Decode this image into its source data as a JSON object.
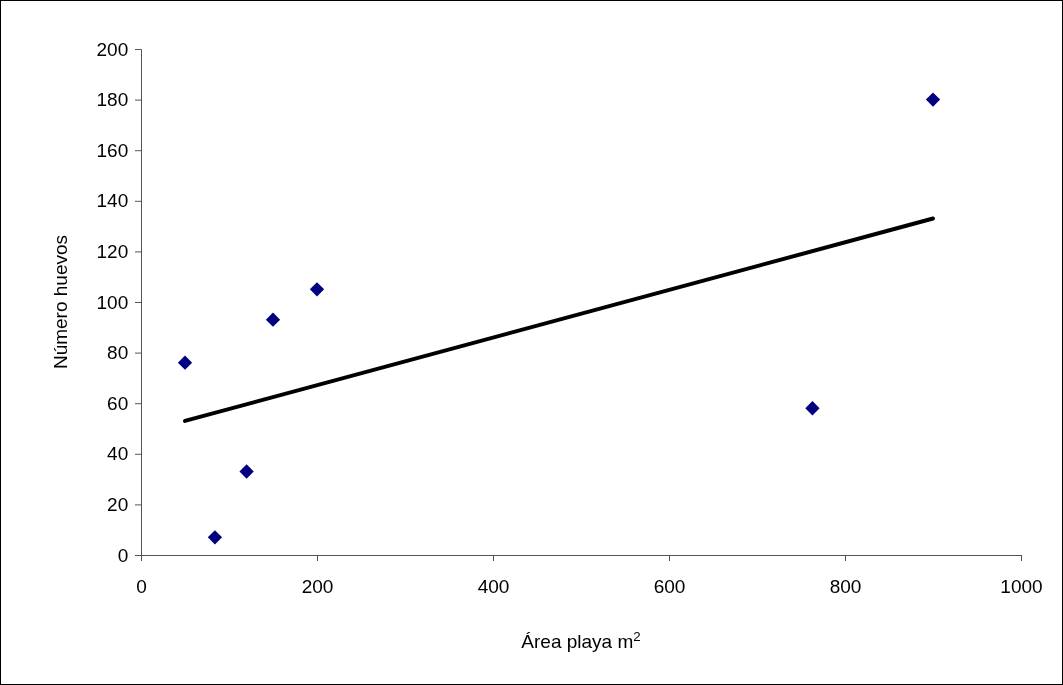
{
  "chart_data": {
    "type": "scatter",
    "xlabel": "Área playa m$^{2}$",
    "ylabel": "Número huevos",
    "xlim": [
      0,
      1000
    ],
    "xticks": [
      0,
      200,
      400,
      600,
      800,
      1000
    ],
    "ylim": [
      0,
      200
    ],
    "yticks": [
      0,
      20,
      40,
      60,
      80,
      100,
      120,
      140,
      160,
      180,
      200
    ],
    "grid": false,
    "series": [
      {
        "color": "#000080",
        "marker": "diamond",
        "x": [
          50,
          84,
          120,
          150,
          200,
          763,
          900
        ],
        "values": [
          76,
          7,
          33,
          93,
          105,
          58,
          180
        ]
      },
      {
        "type": "line",
        "color": "#000000",
        "marker": "none",
        "line_style": "solid",
        "x": [
          50,
          900
        ],
        "values": [
          53,
          133
        ]
      }
    ]
  }
}
